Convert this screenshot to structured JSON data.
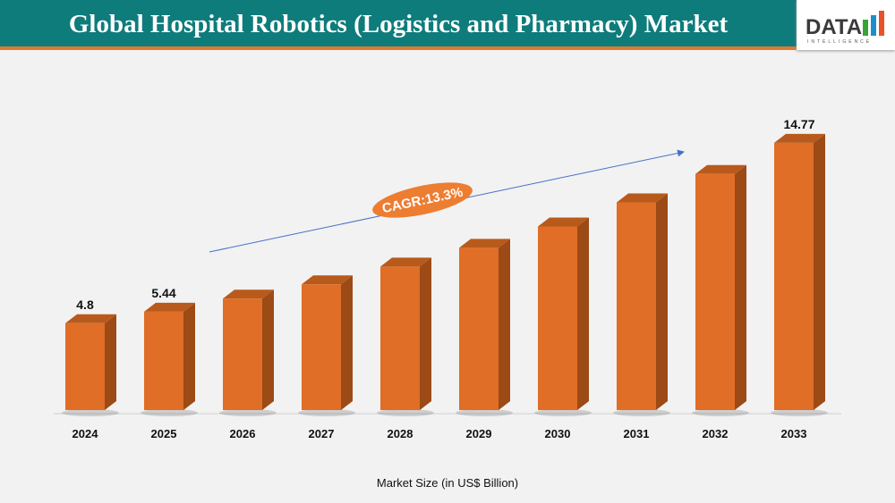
{
  "header": {
    "title": "Global Hospital Robotics (Logistics and Pharmacy) Market"
  },
  "logo": {
    "text": "DATA",
    "subtext": "INTELLIGENCE"
  },
  "chart_data": {
    "type": "bar",
    "categories": [
      "2024",
      "2025",
      "2026",
      "2027",
      "2028",
      "2029",
      "2030",
      "2031",
      "2032",
      "2033"
    ],
    "values": [
      4.8,
      5.44,
      6.16,
      6.95,
      7.93,
      8.97,
      10.15,
      11.48,
      13.05,
      14.77
    ],
    "data_labels": [
      "4.8",
      "5.44",
      null,
      null,
      null,
      null,
      null,
      null,
      null,
      "14.77"
    ],
    "xlabel": "Market Size (in US$ Billion)",
    "ylabel": "",
    "ylim": [
      0,
      16
    ],
    "grid": false,
    "style": "3d-column",
    "annotation": "CAGR:13.3%",
    "colors": {
      "bar_front": "#e06e27",
      "bar_side": "#9c4a16",
      "bar_top": "#b85a1c",
      "annotation": "#ed7d31",
      "arrow": "#4472c4",
      "header": "#0e7c7b"
    }
  }
}
